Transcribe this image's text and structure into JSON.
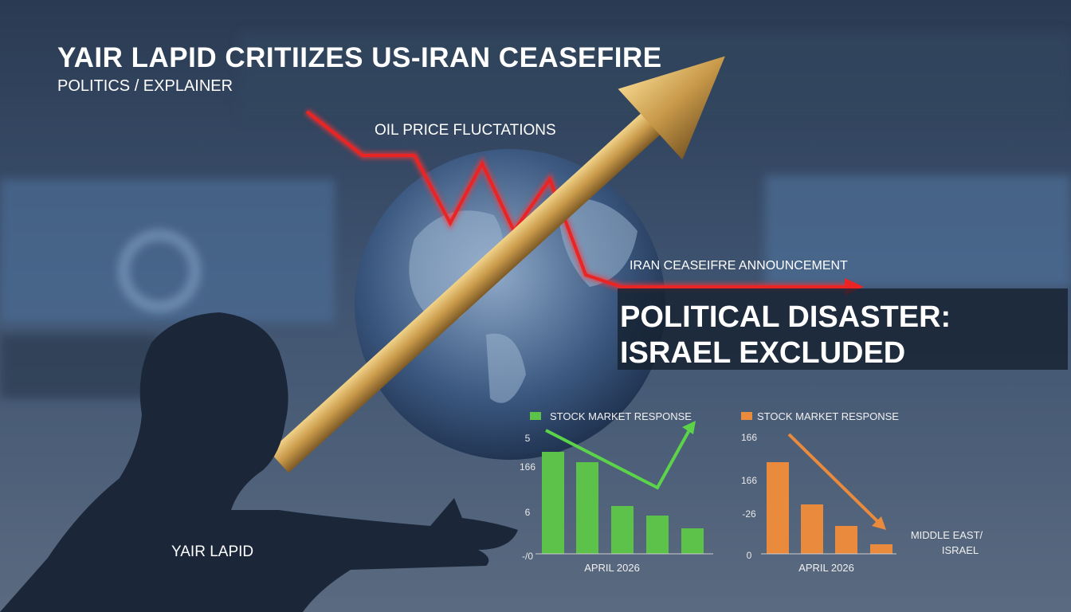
{
  "header": {
    "title": "YAIR LAPID CRITIIZES US-IRAN CEASEFIRE",
    "subtitle": "POLITICS / EXPLAINER"
  },
  "annotations": {
    "oil": "OIL PRICE FLUCTATIONS",
    "ceasefire": "IRAN CEASEIFRE ANNOUNCEMENT",
    "headline": [
      "POLITICAL DISASTER:",
      "ISRAEL EXCLUDED"
    ],
    "person": "YAIR LAPID",
    "region": [
      "MIDDLE EAST/",
      "ISRAEL"
    ]
  },
  "panels": [
    {
      "legend": "STOCK MARKET RESPONSE",
      "axis_labels": [
        "5",
        "166",
        "6",
        "-/0"
      ],
      "footer": "APRIL 2026"
    },
    {
      "legend": "STOCK MARKET RESPONSE",
      "axis_labels": [
        "166",
        "166",
        "-26",
        "0"
      ],
      "footer": "APRIL 2026"
    }
  ]
}
